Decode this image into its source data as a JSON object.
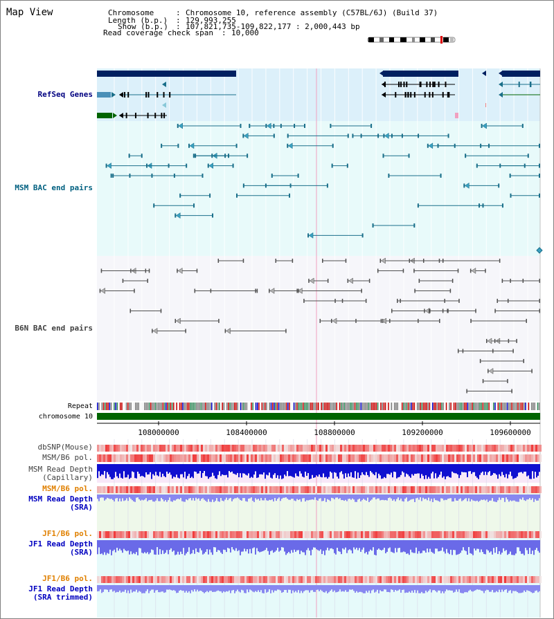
{
  "title": "Map View",
  "info": {
    "chromosome_key": "Chromosome",
    "chromosome_val": "Chromosome 10, reference assembly (C57BL/6J) (Build 37)",
    "length_key": "Length (b.p.)",
    "length_val": "129,993,255",
    "show_key": "Show (b.p.)",
    "show_val": "107,821,735-109,822,177 : 2,000,443 bp",
    "coverage_key": "Read coverage check span",
    "coverage_val": "10,000"
  },
  "tracks": {
    "refseq": "RefSeq Genes",
    "msm_bac": "MSM BAC end pairs",
    "b6n_bac": "B6N BAC end pairs",
    "repeat": "Repeat",
    "chromosome": "chromosome 10",
    "dbsnp": "dbSNP(Mouse)",
    "msm_pol": "MSM/B6 pol.",
    "msm_depth_cap_1": "MSM Read Depth",
    "msm_depth_cap_2": "(Capillary)",
    "msm_pol2": "MSM/B6 pol.",
    "msm_depth_sra_1": "MSM Read Depth",
    "msm_depth_sra_2": "(SRA)",
    "jf1_pol": "JF1/B6 pol.",
    "jf1_depth_sra_1": "JF1 Read Depth",
    "jf1_depth_sra_2": "(SRA)",
    "jf1_pol2": "JF1/B6 pol.",
    "jf1_depth_trim_1": "JF1 Read Depth",
    "jf1_depth_trim_2": "(SRA trimmed)"
  },
  "axis": {
    "ticks": [
      "108000000",
      "108400000",
      "108800000",
      "109200000",
      "109600000"
    ]
  },
  "colors": {
    "refseq_bg": "#dcf0fa",
    "msm_bg": "#e8fafa",
    "b6n_bg": "#f6f6fa",
    "gene_navy": "#002060",
    "gene_teal": "#1a6f8a",
    "msm_pair": "#1a6f8a",
    "b6n_pair": "#505050",
    "chromosome_green": "#006400",
    "label_navy": "#000080",
    "label_teal": "#006080",
    "label_orange": "#e08000",
    "label_blue": "#0000c0",
    "label_gray": "#404040",
    "pol_red": "#e82020",
    "depth_blue": "#1010d0",
    "depth_lavender": "#8888f0"
  }
}
